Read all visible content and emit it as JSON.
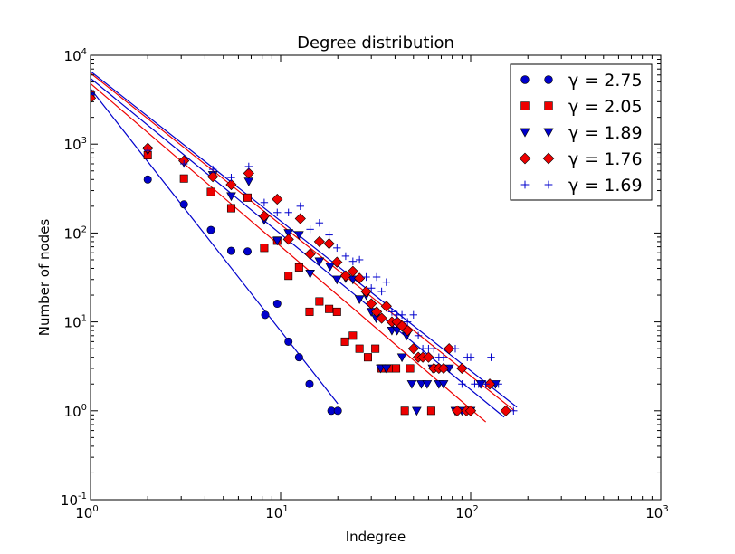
{
  "chart_data": {
    "type": "scatter",
    "title": "Degree distribution",
    "xlabel": "Indegree",
    "ylabel": "Number of nodes",
    "xscale": "log",
    "yscale": "log",
    "xlim": [
      1,
      1000
    ],
    "ylim": [
      0.1,
      10000
    ],
    "x_ticks": [
      {
        "base": "10",
        "exp": "0",
        "value": 1
      },
      {
        "base": "10",
        "exp": "1",
        "value": 10
      },
      {
        "base": "10",
        "exp": "2",
        "value": 100
      },
      {
        "base": "10",
        "exp": "3",
        "value": 1000
      }
    ],
    "y_ticks": [
      {
        "base": "10",
        "exp": "-1",
        "value": 0.1
      },
      {
        "base": "10",
        "exp": "0",
        "value": 1
      },
      {
        "base": "10",
        "exp": "1",
        "value": 10
      },
      {
        "base": "10",
        "exp": "2",
        "value": 100
      },
      {
        "base": "10",
        "exp": "3",
        "value": 1000
      },
      {
        "base": "10",
        "exp": "4",
        "value": 10000
      }
    ],
    "grid": false,
    "legend_position": "top-right",
    "series": [
      {
        "name": "γ = 2.75",
        "marker": "circle",
        "color": "#0000cc",
        "points": [
          [
            1,
            3500
          ],
          [
            2,
            400
          ],
          [
            3.1,
            210
          ],
          [
            4.3,
            108
          ],
          [
            5.5,
            63
          ],
          [
            6.7,
            62
          ],
          [
            8.3,
            12
          ],
          [
            9.6,
            16
          ],
          [
            11,
            6
          ],
          [
            12.5,
            4
          ],
          [
            14.2,
            2
          ],
          [
            18.5,
            1
          ],
          [
            20,
            1
          ]
        ],
        "fit": {
          "x": [
            1,
            20
          ],
          "y": [
            4200,
            1.2
          ]
        }
      },
      {
        "name": "γ = 2.05",
        "marker": "square",
        "color": "#ee0000",
        "points": [
          [
            1,
            3600
          ],
          [
            2,
            750
          ],
          [
            3.1,
            410
          ],
          [
            4.3,
            290
          ],
          [
            5.5,
            190
          ],
          [
            6.7,
            250
          ],
          [
            8.2,
            68
          ],
          [
            9.6,
            82
          ],
          [
            11,
            33
          ],
          [
            12.5,
            41
          ],
          [
            14.2,
            13
          ],
          [
            16,
            17
          ],
          [
            18,
            14
          ],
          [
            19.8,
            13
          ],
          [
            21.8,
            6
          ],
          [
            24,
            7
          ],
          [
            26,
            5
          ],
          [
            28.8,
            4
          ],
          [
            31.5,
            5
          ],
          [
            34,
            3
          ],
          [
            37,
            3
          ],
          [
            40.5,
            3
          ],
          [
            45,
            1
          ],
          [
            48,
            3
          ],
          [
            62,
            1
          ]
        ],
        "fit": {
          "x": [
            1,
            120
          ],
          "y": [
            4800,
            0.75
          ]
        }
      },
      {
        "name": "γ = 1.89",
        "marker": "triangle-down",
        "color": "#0000cc",
        "points": [
          [
            1,
            3500
          ],
          [
            2,
            850
          ],
          [
            3.1,
            620
          ],
          [
            4.4,
            450
          ],
          [
            5.5,
            260
          ],
          [
            6.8,
            380
          ],
          [
            8.2,
            140
          ],
          [
            9.6,
            82
          ],
          [
            11,
            100
          ],
          [
            12.5,
            95
          ],
          [
            14.3,
            35
          ],
          [
            16,
            48
          ],
          [
            18.2,
            42
          ],
          [
            19.8,
            30
          ],
          [
            22,
            31
          ],
          [
            24,
            30
          ],
          [
            26,
            18
          ],
          [
            28.2,
            20
          ],
          [
            30,
            13
          ],
          [
            31.8,
            11
          ],
          [
            33.6,
            3
          ],
          [
            36,
            3
          ],
          [
            38.5,
            8
          ],
          [
            41,
            8
          ],
          [
            43.5,
            4
          ],
          [
            46,
            7
          ],
          [
            49,
            2
          ],
          [
            52,
            1
          ],
          [
            55,
            2
          ],
          [
            59,
            2
          ],
          [
            63,
            3
          ],
          [
            68,
            2
          ],
          [
            72,
            2
          ],
          [
            77,
            3
          ],
          [
            83,
            1
          ],
          [
            90,
            1
          ],
          [
            100,
            1
          ],
          [
            113,
            2
          ],
          [
            135,
            2
          ]
        ],
        "fit": {
          "x": [
            1,
            150
          ],
          "y": [
            5500,
            0.85
          ]
        }
      },
      {
        "name": "γ = 1.76",
        "marker": "diamond",
        "color": "#ee0000",
        "points": [
          [
            1,
            3300
          ],
          [
            2,
            900
          ],
          [
            3.1,
            650
          ],
          [
            4.4,
            430
          ],
          [
            5.5,
            350
          ],
          [
            6.8,
            470
          ],
          [
            8.2,
            155
          ],
          [
            9.6,
            240
          ],
          [
            11,
            85
          ],
          [
            12.7,
            145
          ],
          [
            14.3,
            58
          ],
          [
            16,
            80
          ],
          [
            18,
            76
          ],
          [
            19.8,
            47
          ],
          [
            22,
            33
          ],
          [
            24,
            37
          ],
          [
            26,
            31
          ],
          [
            28.2,
            22
          ],
          [
            30,
            16
          ],
          [
            32,
            13
          ],
          [
            34,
            11
          ],
          [
            36,
            15
          ],
          [
            38.5,
            10
          ],
          [
            41,
            10
          ],
          [
            43.5,
            9
          ],
          [
            46.5,
            8
          ],
          [
            50,
            5
          ],
          [
            53,
            4
          ],
          [
            56,
            4
          ],
          [
            60,
            4
          ],
          [
            64,
            3
          ],
          [
            68,
            3
          ],
          [
            72,
            3
          ],
          [
            77,
            5
          ],
          [
            85,
            1
          ],
          [
            90,
            3
          ],
          [
            95,
            1
          ],
          [
            100,
            1
          ],
          [
            126,
            2
          ],
          [
            153,
            1
          ]
        ],
        "fit": {
          "x": [
            1,
            170
          ],
          "y": [
            6300,
            1.0
          ]
        }
      },
      {
        "name": "γ = 1.69",
        "marker": "plus",
        "color": "#0000cc",
        "points": [
          [
            1,
            3600
          ],
          [
            2,
            850
          ],
          [
            3.1,
            600
          ],
          [
            4.4,
            520
          ],
          [
            5.5,
            420
          ],
          [
            6.8,
            560
          ],
          [
            8.2,
            220
          ],
          [
            9.6,
            170
          ],
          [
            11,
            170
          ],
          [
            12.7,
            200
          ],
          [
            14.3,
            110
          ],
          [
            16,
            130
          ],
          [
            18,
            95
          ],
          [
            19.8,
            68
          ],
          [
            22,
            55
          ],
          [
            24,
            48
          ],
          [
            26,
            50
          ],
          [
            28.2,
            32
          ],
          [
            30,
            24
          ],
          [
            32,
            32
          ],
          [
            34,
            22
          ],
          [
            36,
            28
          ],
          [
            38.5,
            13
          ],
          [
            41,
            12
          ],
          [
            43.5,
            12
          ],
          [
            46.5,
            10
          ],
          [
            50,
            12
          ],
          [
            53,
            7
          ],
          [
            56,
            5
          ],
          [
            60,
            5
          ],
          [
            64,
            5
          ],
          [
            68,
            4
          ],
          [
            72,
            4
          ],
          [
            77,
            3
          ],
          [
            83,
            5
          ],
          [
            90,
            2
          ],
          [
            96,
            4
          ],
          [
            100,
            4
          ],
          [
            105,
            2
          ],
          [
            110,
            2
          ],
          [
            120,
            2
          ],
          [
            128,
            4
          ],
          [
            140,
            2
          ],
          [
            168,
            1
          ]
        ],
        "fit": {
          "x": [
            1,
            175
          ],
          "y": [
            6600,
            1.1
          ]
        }
      }
    ]
  }
}
